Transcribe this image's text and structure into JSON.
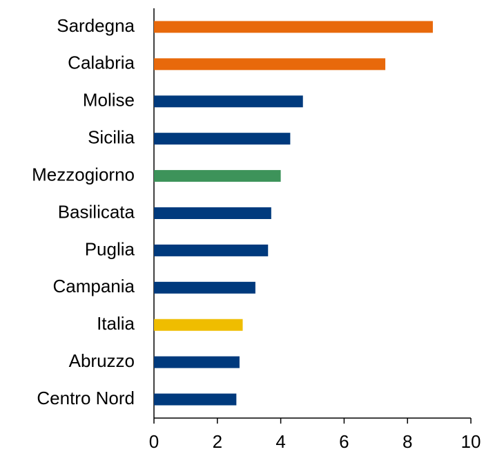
{
  "chart_data": {
    "type": "bar",
    "orientation": "horizontal",
    "categories": [
      "Sardegna",
      "Calabria",
      "Molise",
      "Sicilia",
      "Mezzogiorno",
      "Basilicata",
      "Puglia",
      "Campania",
      "Italia",
      "Abruzzo",
      "Centro Nord"
    ],
    "values": [
      8.8,
      7.3,
      4.7,
      4.3,
      4.0,
      3.7,
      3.6,
      3.2,
      2.8,
      2.7,
      2.6
    ],
    "colors": [
      "#e8690b",
      "#e8690b",
      "#003a7d",
      "#003a7d",
      "#3d935a",
      "#003a7d",
      "#003a7d",
      "#003a7d",
      "#efbd00",
      "#003a7d",
      "#003a7d"
    ],
    "xlim": [
      0,
      10
    ],
    "xticks": [
      0,
      2,
      4,
      6,
      8,
      10
    ],
    "grid": false
  }
}
